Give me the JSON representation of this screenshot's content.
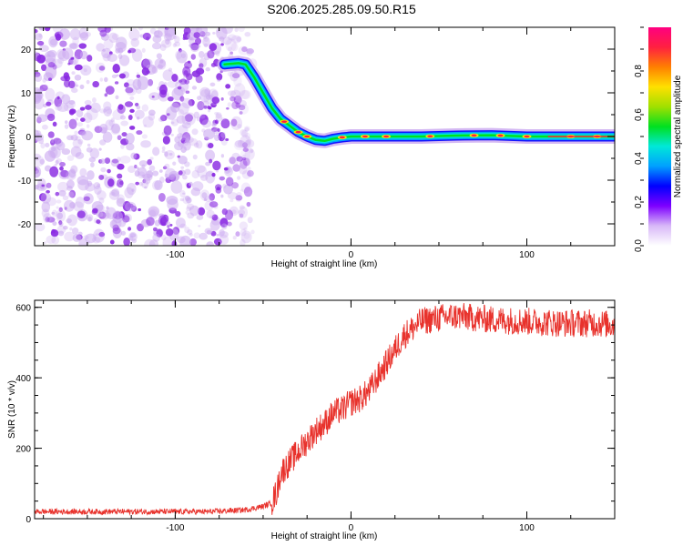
{
  "page_title": "S206.2025.285.09.50.R15",
  "colors": {
    "snr_line": "#e8322c",
    "scatter_main": "#8a2be2",
    "scatter_light": "#c9a6f0",
    "axis": "#000000"
  },
  "chart_data": [
    {
      "type": "heatmap",
      "title": "",
      "xlabel": "Height of straight line (km)",
      "ylabel": "Frequency (Hz)",
      "xlim": [
        -180,
        150
      ],
      "ylim": [
        -25,
        25
      ],
      "xticks": [
        -100,
        0,
        100
      ],
      "xtick_labels": [
        "-100",
        "0",
        "100"
      ],
      "yticks": [
        -20,
        -10,
        0,
        10,
        20
      ],
      "ytick_labels": [
        "-20",
        "-10",
        "0",
        "10",
        "20"
      ],
      "noise_region_x": [
        -180,
        -60
      ],
      "ridge": {
        "x": [
          -72,
          -64,
          -60,
          -55,
          -50,
          -45,
          -40,
          -35,
          -30,
          -25,
          -20,
          -15,
          -10,
          -5,
          0,
          20,
          40,
          60,
          80,
          100,
          120,
          150
        ],
        "freq": [
          16.5,
          16.8,
          16.5,
          13.5,
          10,
          6.5,
          4,
          2.5,
          1,
          0,
          -0.8,
          -1,
          -0.5,
          -0.2,
          0,
          0,
          0,
          0.2,
          0.3,
          0,
          0,
          0
        ]
      },
      "colorbar": {
        "label": "Normalized spectral amplitude",
        "range": [
          0,
          1
        ],
        "ticks": [
          0.0,
          0.2,
          0.4,
          0.6,
          0.8
        ],
        "tick_labels": [
          "0.0",
          "0.2",
          "0.4",
          "0.6",
          "0.8"
        ],
        "colors": [
          "#ffffff",
          "#d8b8f8",
          "#7d00ff",
          "#0000ff",
          "#00a0ff",
          "#00e8d8",
          "#00e020",
          "#a0e000",
          "#ffe000",
          "#ff8000",
          "#ff2040",
          "#ff0080"
        ]
      }
    },
    {
      "type": "line",
      "title": "",
      "xlabel": "Height of straight line (km)",
      "ylabel": "SNR (10 * v/v)",
      "xlim": [
        -180,
        150
      ],
      "ylim": [
        0,
        620
      ],
      "xticks": [
        -100,
        0,
        100
      ],
      "xtick_labels": [
        "-100",
        "0",
        "100"
      ],
      "yticks": [
        0,
        200,
        400,
        600
      ],
      "ytick_labels": [
        "0",
        "200",
        "400",
        "600"
      ],
      "series": [
        {
          "name": "SNR",
          "x": [
            -180,
            -160,
            -140,
            -120,
            -100,
            -80,
            -60,
            -50,
            -45,
            -42,
            -40,
            -35,
            -30,
            -25,
            -20,
            -15,
            -10,
            -5,
            0,
            5,
            10,
            15,
            20,
            25,
            30,
            40,
            50,
            60,
            70,
            80,
            100,
            120,
            140,
            150
          ],
          "y": [
            20,
            20,
            20,
            20,
            20,
            20,
            25,
            35,
            45,
            80,
            130,
            160,
            190,
            220,
            250,
            270,
            300,
            310,
            330,
            340,
            360,
            400,
            440,
            480,
            520,
            560,
            570,
            575,
            570,
            565,
            560,
            555,
            555,
            550
          ],
          "noise_amplitude_low": 8,
          "noise_amplitude_high": 40
        }
      ]
    }
  ]
}
